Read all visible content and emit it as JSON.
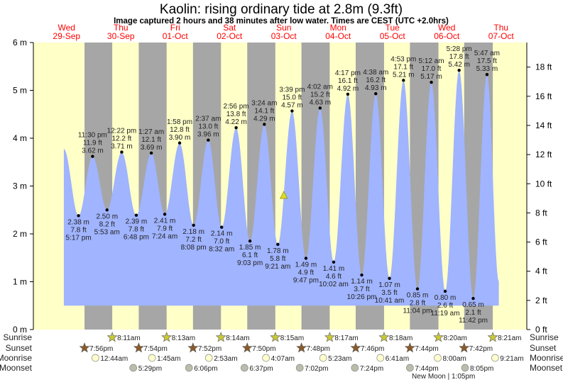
{
  "chart_data": {
    "type": "area",
    "title": "Kaolin: rising  ordinary tide at 2.8m (9.3ft)",
    "subtitle": "Image captured 2 hours and 38 minutes after low water. Times are CEST (UTC +2.0hrs)",
    "days": [
      {
        "name": "Wed",
        "date": "29-Sep"
      },
      {
        "name": "Thu",
        "date": "30-Sep"
      },
      {
        "name": "Fri",
        "date": "01-Oct"
      },
      {
        "name": "Sat",
        "date": "02-Oct"
      },
      {
        "name": "Sun",
        "date": "03-Oct"
      },
      {
        "name": "Mon",
        "date": "04-Oct"
      },
      {
        "name": "Tue",
        "date": "05-Oct"
      },
      {
        "name": "Wed",
        "date": "06-Oct"
      },
      {
        "name": "Thu",
        "date": "07-Oct"
      }
    ],
    "left_axis": {
      "unit": "m",
      "ylim": [
        0,
        6
      ],
      "ticks": [
        "0 m",
        "1 m",
        "2 m",
        "3 m",
        "4 m",
        "5 m",
        "6 m"
      ]
    },
    "right_axis": {
      "unit": "ft",
      "ticks": [
        "0 ft",
        "2 ft",
        "4 ft",
        "6 ft",
        "8 ft",
        "10 ft",
        "12 ft",
        "14 ft",
        "16 ft",
        "18 ft"
      ]
    },
    "curve_start": {
      "day": 0,
      "time": "10:48 am",
      "m": 3.78
    },
    "curve_end": {
      "day": 8,
      "time": "11:00 am",
      "m": 1.0
    },
    "fill_floor_m": 0.5,
    "current": {
      "day": 4,
      "time": "11:59 am",
      "m": 2.8
    },
    "extremes": [
      {
        "type": "low",
        "day": 0,
        "time": "5:17 pm",
        "m": "2.38 m",
        "ft": "7.8 ft",
        "v": 2.38
      },
      {
        "type": "high",
        "day": 0,
        "time": "11:30 pm",
        "m": "3.62 m",
        "ft": "11.9 ft",
        "v": 3.62
      },
      {
        "type": "low",
        "day": 1,
        "time": "5:53 am",
        "m": "2.50 m",
        "ft": "8.2 ft",
        "v": 2.5
      },
      {
        "type": "high",
        "day": 1,
        "time": "12:22 pm",
        "m": "3.71 m",
        "ft": "12.2 ft",
        "v": 3.71
      },
      {
        "type": "low",
        "day": 1,
        "time": "6:48 pm",
        "m": "2.39 m",
        "ft": "7.8 ft",
        "v": 2.39
      },
      {
        "type": "high",
        "day": 2,
        "time": "1:27 am",
        "m": "3.69 m",
        "ft": "12.1 ft",
        "v": 3.69
      },
      {
        "type": "low",
        "day": 2,
        "time": "7:24 am",
        "m": "2.41 m",
        "ft": "7.9 ft",
        "v": 2.41
      },
      {
        "type": "high",
        "day": 2,
        "time": "1:58 pm",
        "m": "3.90 m",
        "ft": "12.8 ft",
        "v": 3.9
      },
      {
        "type": "low",
        "day": 2,
        "time": "8:08 pm",
        "m": "2.18 m",
        "ft": "7.2 ft",
        "v": 2.18
      },
      {
        "type": "high",
        "day": 3,
        "time": "2:37 am",
        "m": "3.96 m",
        "ft": "13.0 ft",
        "v": 3.96
      },
      {
        "type": "low",
        "day": 3,
        "time": "8:32 am",
        "m": "2.14 m",
        "ft": "7.0 ft",
        "v": 2.14
      },
      {
        "type": "high",
        "day": 3,
        "time": "2:56 pm",
        "m": "4.22 m",
        "ft": "13.8 ft",
        "v": 4.22
      },
      {
        "type": "low",
        "day": 3,
        "time": "9:03 pm",
        "m": "1.85 m",
        "ft": "6.1 ft",
        "v": 1.85
      },
      {
        "type": "high",
        "day": 4,
        "time": "3:24 am",
        "m": "4.29 m",
        "ft": "14.1 ft",
        "v": 4.29
      },
      {
        "type": "low",
        "day": 4,
        "time": "9:21 am",
        "m": "1.78 m",
        "ft": "5.8 ft",
        "v": 1.78
      },
      {
        "type": "high",
        "day": 4,
        "time": "3:39 pm",
        "m": "4.57 m",
        "ft": "15.0 ft",
        "v": 4.57
      },
      {
        "type": "low",
        "day": 4,
        "time": "9:47 pm",
        "m": "1.49 m",
        "ft": "4.9 ft",
        "v": 1.49
      },
      {
        "type": "high",
        "day": 5,
        "time": "4:02 am",
        "m": "4.63 m",
        "ft": "15.2 ft",
        "v": 4.63
      },
      {
        "type": "low",
        "day": 5,
        "time": "10:02 am",
        "m": "1.41 m",
        "ft": "4.6 ft",
        "v": 1.41
      },
      {
        "type": "high",
        "day": 5,
        "time": "4:17 pm",
        "m": "4.92 m",
        "ft": "16.1 ft",
        "v": 4.92
      },
      {
        "type": "low",
        "day": 5,
        "time": "10:26 pm",
        "m": "1.14 m",
        "ft": "3.7 ft",
        "v": 1.14
      },
      {
        "type": "high",
        "day": 6,
        "time": "4:38 am",
        "m": "4.93 m",
        "ft": "16.2 ft",
        "v": 4.93
      },
      {
        "type": "low",
        "day": 6,
        "time": "10:41 am",
        "m": "1.07 m",
        "ft": "3.5 ft",
        "v": 1.07
      },
      {
        "type": "high",
        "day": 6,
        "time": "4:53 pm",
        "m": "5.21 m",
        "ft": "17.1 ft",
        "v": 5.21
      },
      {
        "type": "low",
        "day": 6,
        "time": "11:04 pm",
        "m": "0.85 m",
        "ft": "2.8 ft",
        "v": 0.85
      },
      {
        "type": "high",
        "day": 7,
        "time": "5:12 am",
        "m": "5.17 m",
        "ft": "17.0 ft",
        "v": 5.17
      },
      {
        "type": "low",
        "day": 7,
        "time": "11:19 am",
        "m": "0.80 m",
        "ft": "2.6 ft",
        "v": 0.8
      },
      {
        "type": "high",
        "day": 7,
        "time": "5:28 pm",
        "m": "5.42 m",
        "ft": "17.8 ft",
        "v": 5.42
      },
      {
        "type": "low",
        "day": 7,
        "time": "11:42 pm",
        "m": "0.65 m",
        "ft": "2.1 ft",
        "v": 0.65
      },
      {
        "type": "high",
        "day": 8,
        "time": "5:47 am",
        "m": "5.33 m",
        "ft": "17.5 ft",
        "v": 5.33
      }
    ],
    "rows": {
      "sunrise_label": "Sunrise",
      "sunset_label": "Sunset",
      "moonrise_label": "Moonrise",
      "moonset_label": "Moonset",
      "sunrise": [
        {
          "day": 1,
          "time": "8:11am"
        },
        {
          "day": 2,
          "time": "8:13am"
        },
        {
          "day": 3,
          "time": "8:14am"
        },
        {
          "day": 4,
          "time": "8:15am"
        },
        {
          "day": 5,
          "time": "8:17am"
        },
        {
          "day": 6,
          "time": "8:18am"
        },
        {
          "day": 7,
          "time": "8:20am"
        },
        {
          "day": 8,
          "time": "8:21am"
        }
      ],
      "sunset": [
        {
          "day": 0,
          "time": "7:56pm"
        },
        {
          "day": 1,
          "time": "7:54pm"
        },
        {
          "day": 2,
          "time": "7:52pm"
        },
        {
          "day": 3,
          "time": "7:50pm"
        },
        {
          "day": 4,
          "time": "7:48pm"
        },
        {
          "day": 5,
          "time": "7:46pm"
        },
        {
          "day": 6,
          "time": "7:44pm"
        },
        {
          "day": 7,
          "time": "7:42pm"
        }
      ],
      "moonrise": [
        {
          "day": 1,
          "time": "12:44am"
        },
        {
          "day": 2,
          "time": "1:45am"
        },
        {
          "day": 3,
          "time": "2:53am"
        },
        {
          "day": 4,
          "time": "4:07am"
        },
        {
          "day": 5,
          "time": "5:23am"
        },
        {
          "day": 6,
          "time": "6:41am"
        },
        {
          "day": 7,
          "time": "8:00am"
        },
        {
          "day": 8,
          "time": "9:21am"
        }
      ],
      "moonset": [
        {
          "day": 1,
          "time": "5:29pm"
        },
        {
          "day": 2,
          "time": "6:06pm"
        },
        {
          "day": 3,
          "time": "6:37pm"
        },
        {
          "day": 4,
          "time": "7:02pm"
        },
        {
          "day": 5,
          "time": "7:24pm"
        },
        {
          "day": 6,
          "time": "7:44pm"
        },
        {
          "day": 7,
          "time": "8:05pm"
        }
      ]
    },
    "moon_phase": {
      "day": 7,
      "time": "1:05pm",
      "label": "New Moon | 1:05pm"
    },
    "colors": {
      "day": "#ffffc8",
      "night": "#a6a6a6",
      "water": "#a0b4ff",
      "day_label": "#ff0000",
      "sunrise": "#c8c83a",
      "sunset": "#8a5a2a",
      "moonrise": "#ffffcc",
      "moonset": "#bcbcac"
    }
  }
}
